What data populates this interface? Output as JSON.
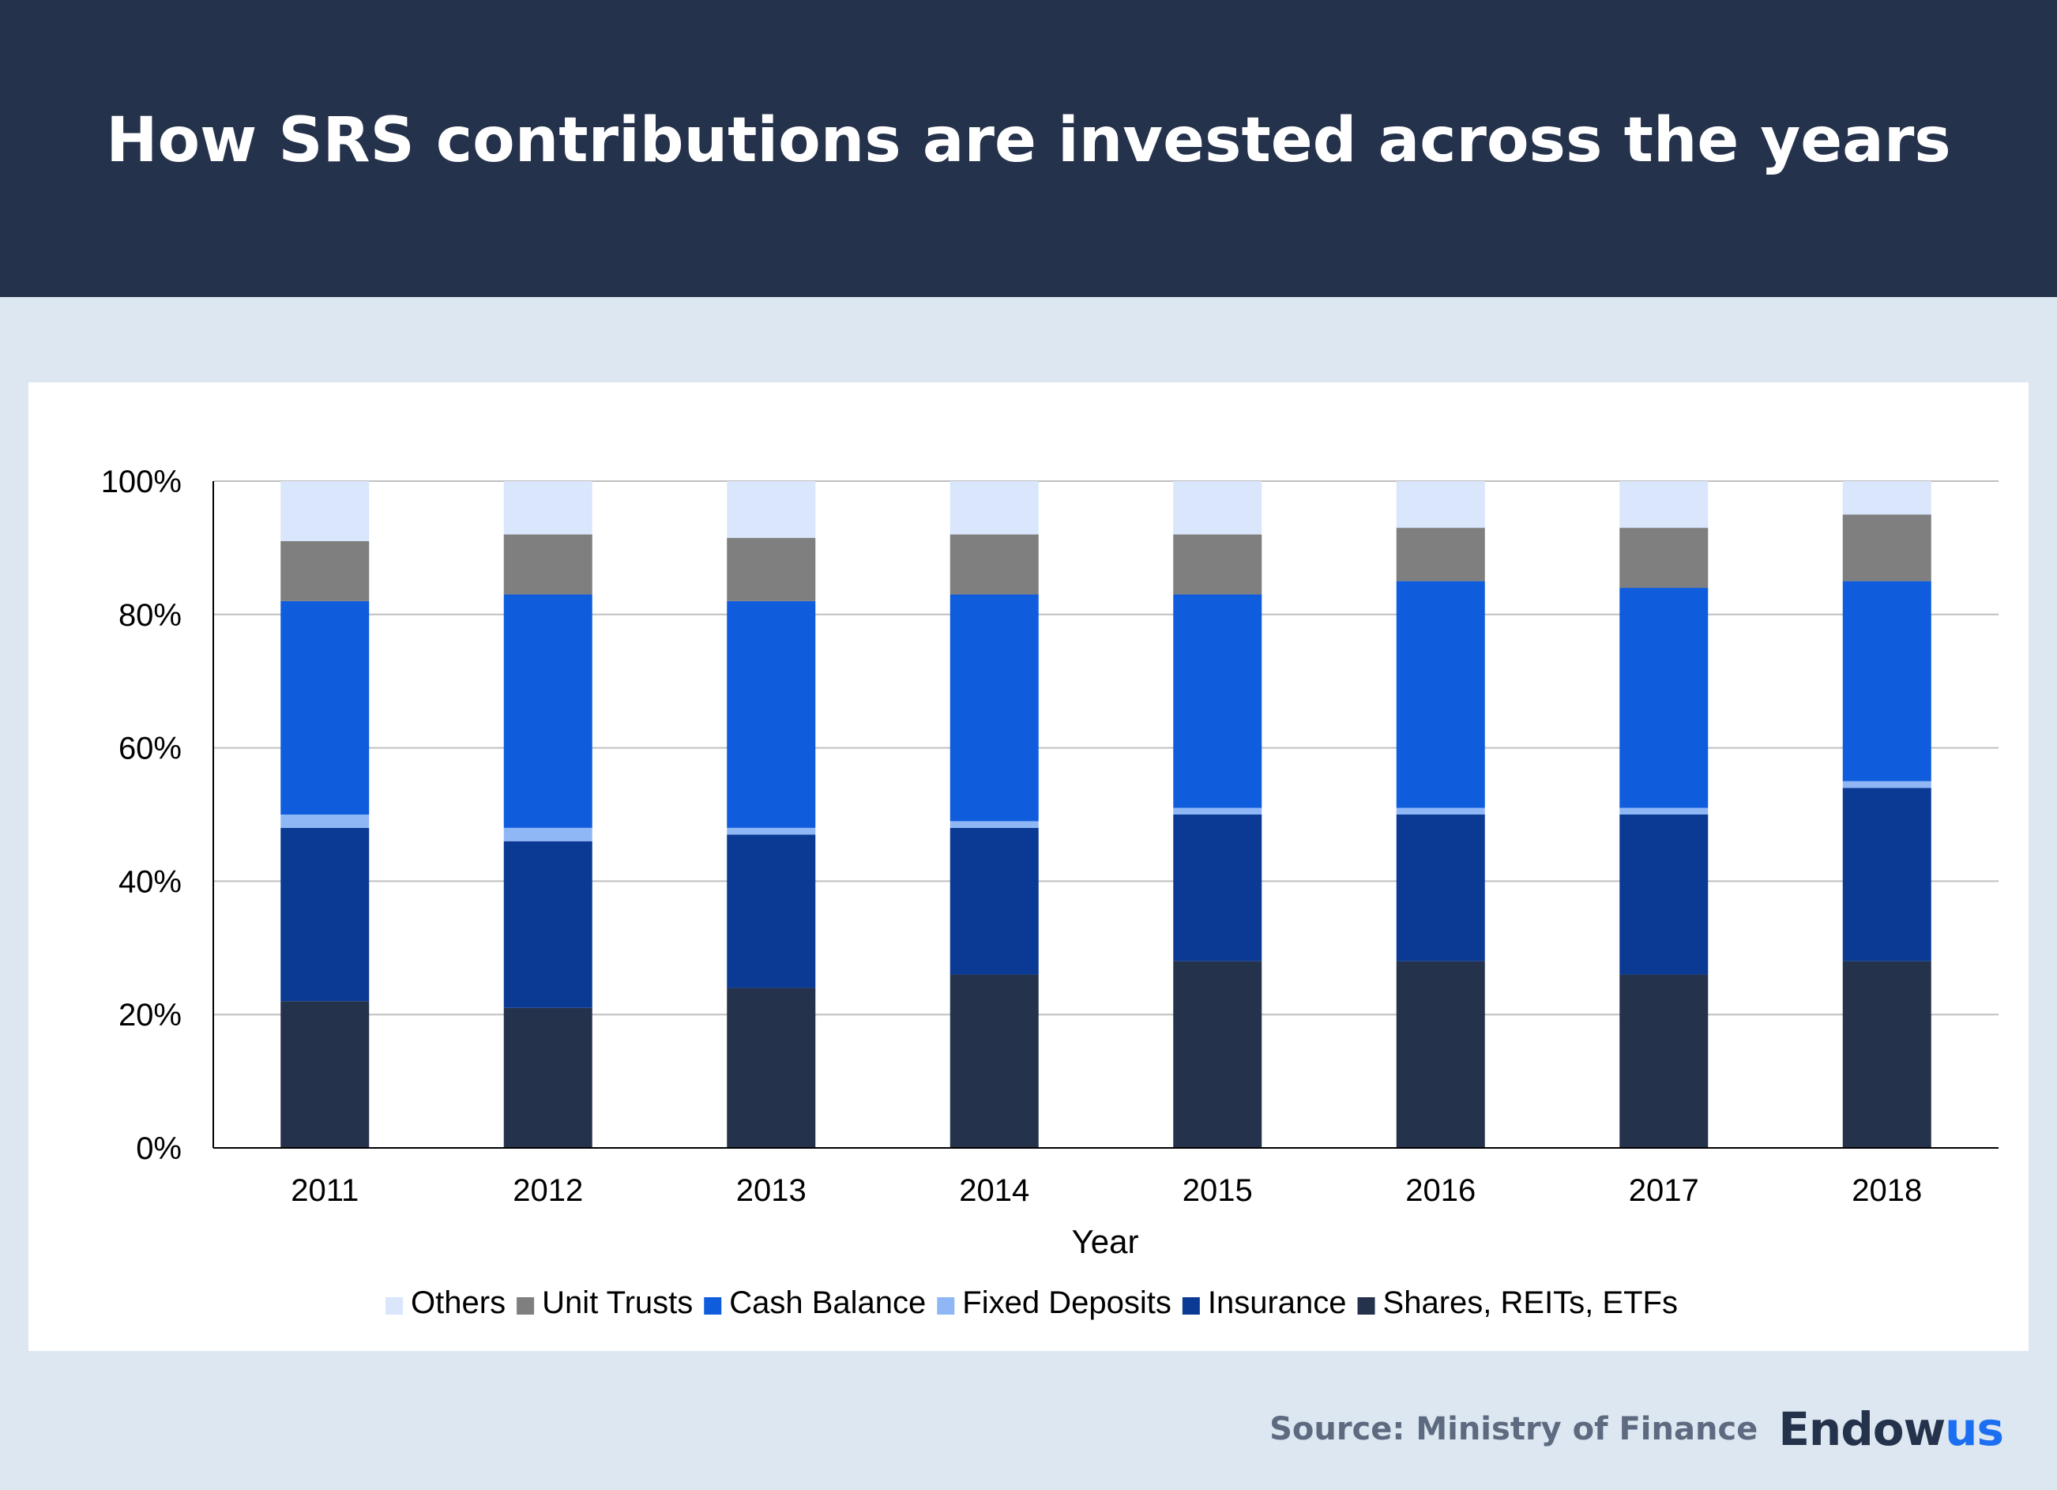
{
  "header": {
    "title": "How SRS contributions are invested across the years"
  },
  "footer": {
    "source": "Source: Ministry of Finance",
    "logo_main": "Endow",
    "logo_accent": "us"
  },
  "colors": {
    "header_bg": "#25324b",
    "page_bg": "#dde7f1",
    "brand_accent": "#1c6ff0"
  },
  "chart_data": {
    "type": "bar",
    "stacked": true,
    "title": "",
    "xlabel": "Year",
    "ylabel": "",
    "ylim": [
      0,
      100
    ],
    "yticks": [
      "0%",
      "20%",
      "40%",
      "60%",
      "80%",
      "100%"
    ],
    "grid": true,
    "legend_position": "bottom",
    "categories": [
      "2011",
      "2012",
      "2013",
      "2014",
      "2015",
      "2016",
      "2017",
      "2018"
    ],
    "series": [
      {
        "name": "Shares, REITs, ETFs",
        "color": "#25324b",
        "values": [
          22,
          21,
          24,
          26,
          28,
          28,
          26,
          28
        ]
      },
      {
        "name": "Insurance",
        "color": "#0b3a94",
        "values": [
          26,
          25,
          23,
          22,
          22,
          22,
          24,
          26
        ]
      },
      {
        "name": "Fixed Deposits",
        "color": "#8fb7f5",
        "values": [
          2,
          2,
          1,
          1,
          1,
          1,
          1,
          1
        ]
      },
      {
        "name": "Cash Balance",
        "color": "#0f5ddd",
        "values": [
          32,
          35,
          34,
          34,
          32,
          34,
          33,
          30
        ]
      },
      {
        "name": "Unit Trusts",
        "color": "#7f7f7f",
        "values": [
          9,
          9,
          9.5,
          9,
          9,
          8,
          9,
          10
        ]
      },
      {
        "name": "Others",
        "color": "#d9e6fb",
        "values": [
          9,
          8,
          8.5,
          8,
          8,
          7,
          7,
          5
        ]
      }
    ],
    "legend_order": [
      "Others",
      "Unit Trusts",
      "Cash Balance",
      "Fixed Deposits",
      "Insurance",
      "Shares, REITs, ETFs"
    ]
  }
}
